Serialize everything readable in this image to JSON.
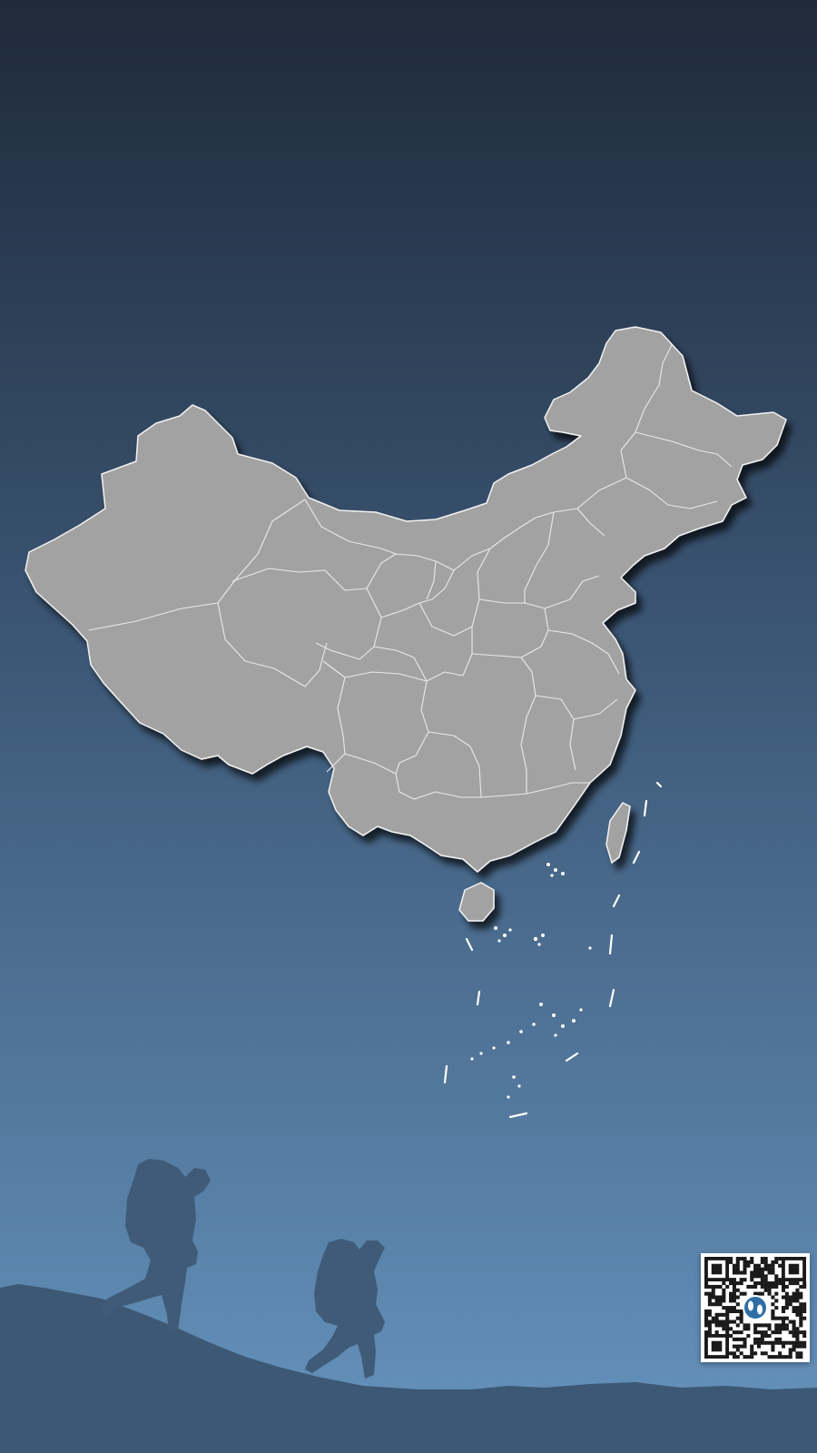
{
  "colors": {
    "sky_top": "#1f2a3a",
    "sky_mid": "#3a5472",
    "sky_bottom": "#6593bd",
    "land_fill": "#a2a2a2",
    "province_border": "#e9e9e9",
    "ground": "#3c5874",
    "silhouette": "#3f5b78",
    "qr_dark": "#1a1a1a",
    "qr_badge": "#2f6fa5"
  },
  "icons": {
    "map": "china-map-icon",
    "hikers": "hiker-silhouette-icon",
    "qr": "qr-code-icon",
    "qr_logo": "footprints-icon"
  }
}
